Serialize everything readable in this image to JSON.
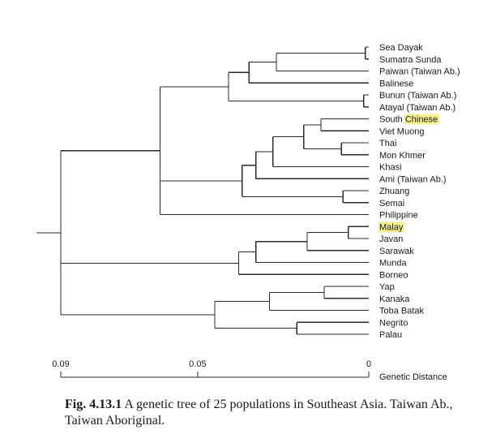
{
  "figure": {
    "leaves": [
      {
        "parts": [
          {
            "text": "Sea Dayak"
          }
        ]
      },
      {
        "parts": [
          {
            "text": "Sumatra Sunda"
          }
        ]
      },
      {
        "parts": [
          {
            "text": "Paiwan (Taiwan Ab.)"
          }
        ]
      },
      {
        "parts": [
          {
            "text": "Balinese"
          }
        ]
      },
      {
        "parts": [
          {
            "text": "Bunun (Taiwan Ab.)"
          }
        ]
      },
      {
        "parts": [
          {
            "text": "Atayal (Taiwan Ab.)"
          }
        ]
      },
      {
        "parts": [
          {
            "text": "South "
          },
          {
            "text": "Chinese",
            "highlight": true
          }
        ]
      },
      {
        "parts": [
          {
            "text": "Viet Muong"
          }
        ]
      },
      {
        "parts": [
          {
            "text": "Thai"
          }
        ]
      },
      {
        "parts": [
          {
            "text": "Mon Khmer"
          }
        ]
      },
      {
        "parts": [
          {
            "text": "Khasi"
          }
        ]
      },
      {
        "parts": [
          {
            "text": "Ami (Taiwan Ab.)"
          }
        ]
      },
      {
        "parts": [
          {
            "text": "Zhuang"
          }
        ]
      },
      {
        "parts": [
          {
            "text": "Semai"
          }
        ]
      },
      {
        "parts": [
          {
            "text": "Philippine"
          }
        ]
      },
      {
        "parts": [
          {
            "text": "Malay",
            "highlight": true
          }
        ]
      },
      {
        "parts": [
          {
            "text": "Javan"
          }
        ]
      },
      {
        "parts": [
          {
            "text": "Sarawak"
          }
        ]
      },
      {
        "parts": [
          {
            "text": "Munda"
          }
        ]
      },
      {
        "parts": [
          {
            "text": "Borneo"
          }
        ]
      },
      {
        "parts": [
          {
            "text": "Yap"
          }
        ]
      },
      {
        "parts": [
          {
            "text": "Kanaka"
          }
        ]
      },
      {
        "parts": [
          {
            "text": "Toba Batak"
          }
        ]
      },
      {
        "parts": [
          {
            "text": "Negrito"
          }
        ]
      },
      {
        "parts": [
          {
            "text": "Palau"
          }
        ]
      }
    ],
    "tree": {
      "h": 0.09,
      "c": [
        {
          "h": 0.061,
          "c": [
            {
              "h": 0.041,
              "c": [
                {
                  "h": 0.035,
                  "c": [
                    {
                      "h": 0.027,
                      "c": [
                        {
                          "h": 0.001,
                          "c": [
                            0,
                            1
                          ]
                        },
                        2
                      ]
                    },
                    3
                  ]
                },
                {
                  "h": 0.0015,
                  "c": [
                    4,
                    5
                  ]
                }
              ]
            },
            {
              "h": 0.037,
              "c": [
                {
                  "h": 0.033,
                  "c": [
                    {
                      "h": 0.028,
                      "c": [
                        {
                          "h": 0.019,
                          "c": [
                            {
                              "h": 0.014,
                              "c": [
                                6,
                                7
                              ]
                            },
                            {
                              "h": 0.008,
                              "c": [
                                8,
                                9
                              ]
                            }
                          ]
                        },
                        10
                      ]
                    },
                    11
                  ]
                },
                {
                  "h": 0.0075,
                  "c": [
                    12,
                    13
                  ]
                }
              ]
            },
            14
          ]
        },
        {
          "h": 0.038,
          "c": [
            {
              "h": 0.033,
              "c": [
                {
                  "h": 0.018,
                  "c": [
                    {
                      "h": 0.006,
                      "c": [
                        15,
                        16
                      ]
                    },
                    17
                  ]
                },
                18
              ]
            },
            19
          ]
        },
        {
          "h": 0.045,
          "c": [
            {
              "h": 0.029,
              "c": [
                {
                  "h": 0.013,
                  "c": [
                    20,
                    21
                  ]
                },
                22
              ]
            },
            {
              "h": 0.021,
              "c": [
                23,
                24
              ]
            }
          ]
        }
      ]
    },
    "axis": {
      "range": [
        0.09,
        0
      ],
      "ticks": [
        {
          "value": 0.09,
          "label": "0.09"
        },
        {
          "value": 0.05,
          "label": "0.05"
        },
        {
          "value": 0,
          "label": "0"
        }
      ],
      "title": "Genetic Distance"
    }
  },
  "caption": {
    "label": "Fig. 4.13.1",
    "text": " A genetic tree of 25 populations in Southeast Asia. Taiwan Ab., Taiwan Aboriginal."
  }
}
